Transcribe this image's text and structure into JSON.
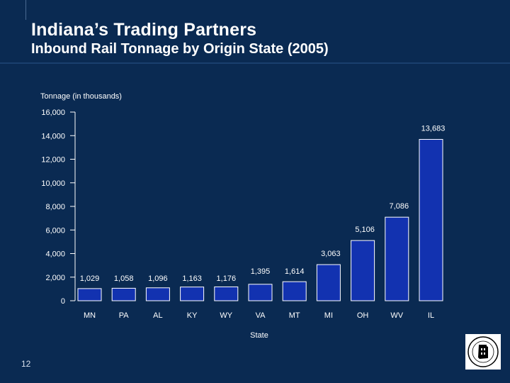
{
  "slide": {
    "title": "Indiana’s Trading Partners",
    "subtitle": "Inbound Rail Tonnage by Origin State (2005)",
    "page_number": "12",
    "seal_text": "INDIANA DEPARTMENT OF TRANSPORTATION"
  },
  "colors": {
    "background": "#0a2a52",
    "bar_fill": "#1232b0",
    "bar_stroke": "#ffffff",
    "text": "#ffffff"
  },
  "chart_data": {
    "type": "bar",
    "ylabel": "Tonnage (in thousands)",
    "xlabel": "State",
    "ylim": [
      0,
      16000
    ],
    "yticks": [
      0,
      2000,
      4000,
      6000,
      8000,
      10000,
      12000,
      14000,
      16000
    ],
    "ytick_labels": [
      "0",
      "2,000",
      "4,000",
      "6,000",
      "8,000",
      "10,000",
      "12,000",
      "14,000",
      "16,000"
    ],
    "categories": [
      "MN",
      "PA",
      "AL",
      "KY",
      "WY",
      "VA",
      "MT",
      "MI",
      "OH",
      "WV",
      "IL"
    ],
    "values": [
      1029,
      1058,
      1096,
      1163,
      1176,
      1395,
      1614,
      3063,
      5106,
      7086,
      13683
    ],
    "data_labels": [
      "1,029",
      "1,058",
      "1,096",
      "1,163",
      "1,176",
      "1,395",
      "1,614",
      "3,063",
      "5,106",
      "7,086",
      "13,683"
    ],
    "grid": false,
    "legend": "none"
  }
}
